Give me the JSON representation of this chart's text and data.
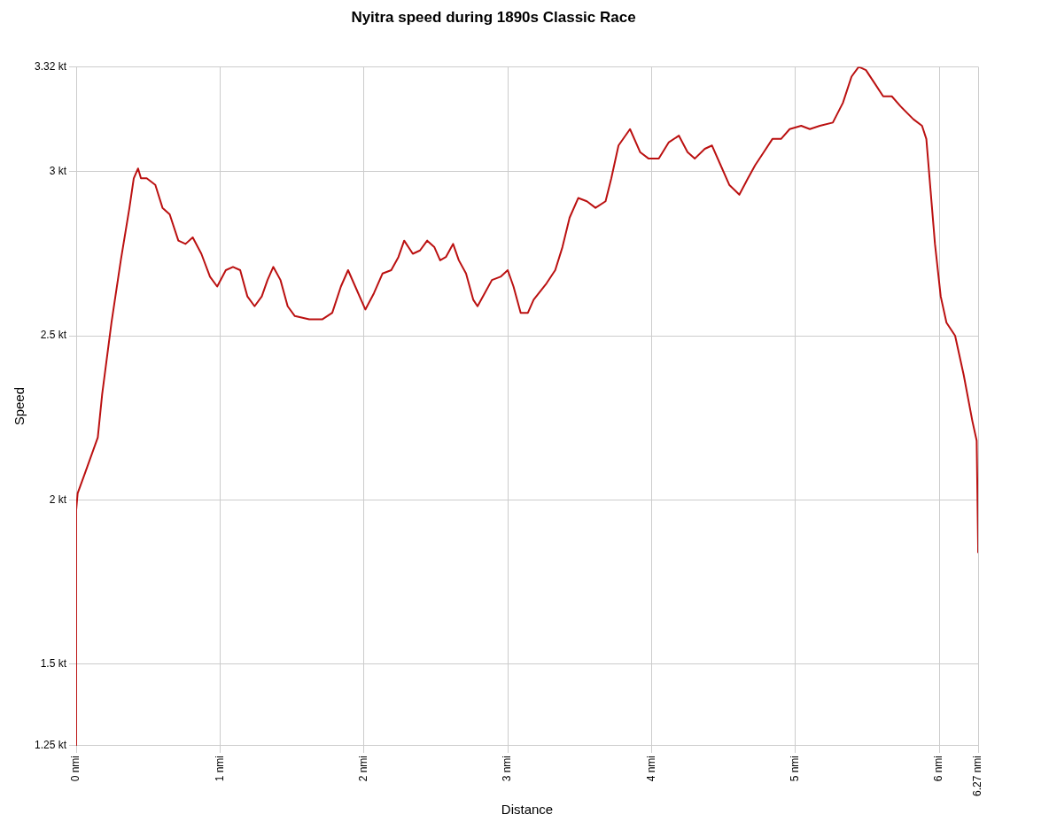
{
  "chart_data": {
    "type": "line",
    "title": "Nyitra speed during 1890s Classic Race",
    "xlabel": "Distance",
    "ylabel": "Speed",
    "xlim": [
      0,
      6.27
    ],
    "ylim": [
      1.25,
      3.32
    ],
    "xticks": [
      {
        "value": 0,
        "label": "0 nmi"
      },
      {
        "value": 1,
        "label": "1 nmi"
      },
      {
        "value": 2,
        "label": "2 nmi"
      },
      {
        "value": 3,
        "label": "3 nmi"
      },
      {
        "value": 4,
        "label": "4 nmi"
      },
      {
        "value": 5,
        "label": "5 nmi"
      },
      {
        "value": 6,
        "label": "6 nmi"
      },
      {
        "value": 6.27,
        "label": "6.27 nmi"
      }
    ],
    "yticks": [
      {
        "value": 1.25,
        "label": "1.25 kt"
      },
      {
        "value": 1.5,
        "label": "1.5 kt"
      },
      {
        "value": 2,
        "label": "2 kt"
      },
      {
        "value": 2.5,
        "label": "2.5 kt"
      },
      {
        "value": 3,
        "label": "3 kt"
      },
      {
        "value": 3.32,
        "label": "3.32 kt"
      }
    ],
    "grid": true,
    "marker": "none",
    "line_style": "solid",
    "series": [
      {
        "color": "#bb1111",
        "x": [
          0,
          0,
          0.01,
          0.06,
          0.15,
          0.18,
          0.245,
          0.31,
          0.37,
          0.4,
          0.43,
          0.45,
          0.49,
          0.55,
          0.6,
          0.65,
          0.71,
          0.76,
          0.81,
          0.87,
          0.93,
          0.98,
          1.04,
          1.09,
          1.14,
          1.19,
          1.24,
          1.29,
          1.33,
          1.37,
          1.42,
          1.47,
          1.52,
          1.62,
          1.71,
          1.78,
          1.84,
          1.89,
          1.94,
          2.01,
          2.07,
          2.13,
          2.19,
          2.24,
          2.28,
          2.34,
          2.39,
          2.44,
          2.49,
          2.53,
          2.57,
          2.62,
          2.66,
          2.71,
          2.76,
          2.79,
          2.84,
          2.89,
          2.95,
          3.0,
          3.04,
          3.09,
          3.14,
          3.18,
          3.27,
          3.33,
          3.38,
          3.43,
          3.49,
          3.55,
          3.61,
          3.68,
          3.72,
          3.77,
          3.85,
          3.92,
          3.98,
          4.05,
          4.12,
          4.19,
          4.25,
          4.3,
          4.37,
          4.42,
          4.48,
          4.54,
          4.61,
          4.67,
          4.72,
          4.78,
          4.84,
          4.9,
          4.96,
          5.04,
          5.1,
          5.17,
          5.26,
          5.33,
          5.39,
          5.44,
          5.49,
          5.55,
          5.61,
          5.67,
          5.73,
          5.82,
          5.88,
          5.91,
          5.94,
          5.97,
          6.01,
          6.05,
          6.11,
          6.17,
          6.23,
          6.26,
          6.27,
          6.27
        ],
        "values": [
          1.25,
          1.97,
          2.02,
          2.08,
          2.19,
          2.32,
          2.54,
          2.73,
          2.89,
          2.98,
          3.01,
          2.98,
          2.98,
          2.96,
          2.89,
          2.87,
          2.79,
          2.78,
          2.8,
          2.75,
          2.68,
          2.65,
          2.7,
          2.71,
          2.7,
          2.62,
          2.59,
          2.62,
          2.67,
          2.71,
          2.67,
          2.59,
          2.56,
          2.55,
          2.55,
          2.57,
          2.65,
          2.7,
          2.65,
          2.58,
          2.63,
          2.69,
          2.7,
          2.74,
          2.79,
          2.75,
          2.76,
          2.79,
          2.77,
          2.73,
          2.74,
          2.78,
          2.73,
          2.69,
          2.61,
          2.59,
          2.63,
          2.67,
          2.68,
          2.7,
          2.65,
          2.57,
          2.57,
          2.61,
          2.66,
          2.7,
          2.77,
          2.86,
          2.92,
          2.91,
          2.89,
          2.91,
          2.98,
          3.08,
          3.13,
          3.06,
          3.04,
          3.04,
          3.09,
          3.11,
          3.06,
          3.04,
          3.07,
          3.08,
          3.02,
          2.96,
          2.93,
          2.98,
          3.02,
          3.06,
          3.1,
          3.1,
          3.13,
          3.14,
          3.13,
          3.14,
          3.15,
          3.21,
          3.29,
          3.32,
          3.31,
          3.27,
          3.23,
          3.23,
          3.2,
          3.16,
          3.14,
          3.1,
          2.94,
          2.78,
          2.62,
          2.54,
          2.5,
          2.38,
          2.24,
          2.18,
          1.86,
          1.84
        ]
      }
    ]
  }
}
